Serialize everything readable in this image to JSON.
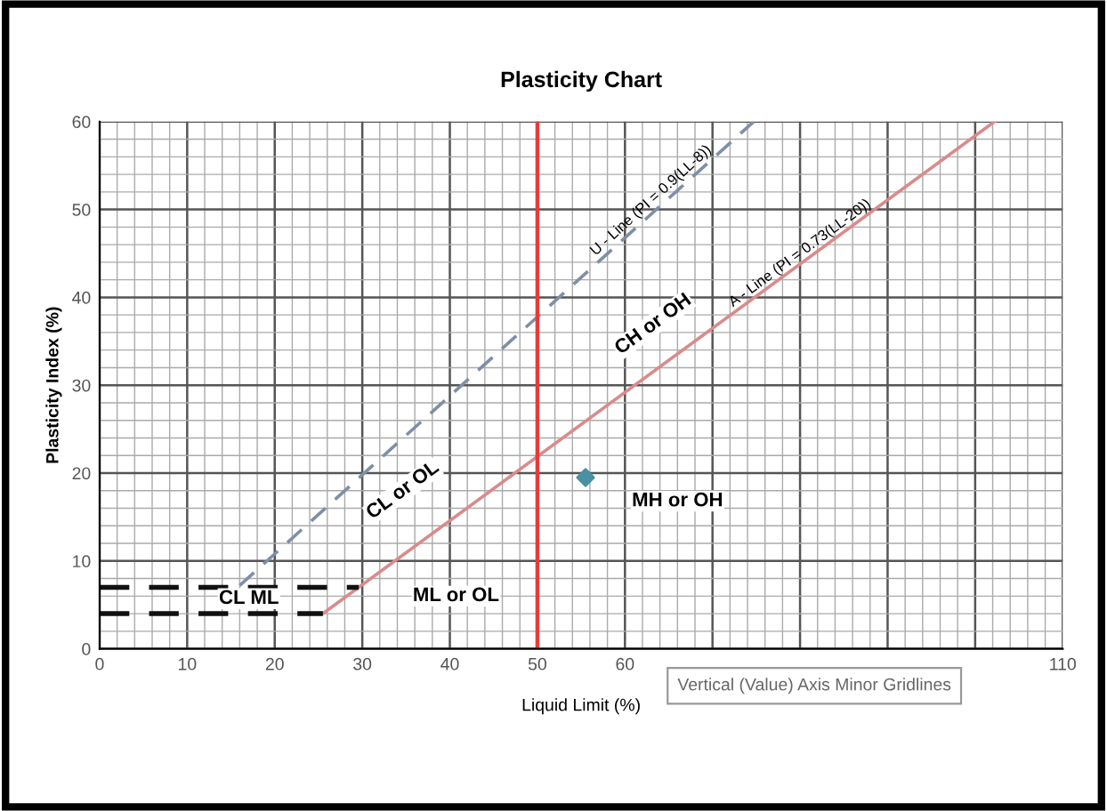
{
  "chart_data": {
    "type": "line",
    "title": "Plasticity Chart",
    "xlabel": "Liquid Limit (%)",
    "ylabel": "Plasticity Index (%)",
    "xlim": [
      0,
      110
    ],
    "ylim": [
      0,
      60
    ],
    "xticks": [
      0,
      10,
      20,
      30,
      40,
      50,
      60,
      {
        "value": 70,
        "label": null
      },
      {
        "value": 80,
        "label": null
      },
      {
        "value": 90,
        "label": null
      },
      {
        "value": 100,
        "label": null
      },
      110
    ],
    "yticks": [
      0,
      10,
      20,
      30,
      40,
      50,
      60
    ],
    "grid": true,
    "series": [
      {
        "x": [
          25.5,
          102.2
        ],
        "values": [
          4,
          60
        ],
        "color": "#d98b8b",
        "line_style": "solid"
      },
      {
        "x": [
          16,
          74.7
        ],
        "values": [
          7.2,
          60
        ],
        "color": "#7f8fa6",
        "line_style": "dashed"
      },
      {
        "x": [
          0,
          25.5
        ],
        "values": [
          4,
          4
        ],
        "color": "#111111",
        "line_style": "dashed"
      },
      {
        "x": [
          0,
          29.6
        ],
        "values": [
          7,
          7
        ],
        "color": "#111111",
        "line_style": "dashed"
      },
      {
        "type": "scatter",
        "x": [
          55.5
        ],
        "values": [
          19.5
        ],
        "color": "#4a90a4",
        "marker": "diamond"
      }
    ],
    "ref_lines": [
      {
        "axis": "x",
        "value": 50,
        "color": "#e83a3a",
        "line_style": "solid"
      }
    ],
    "annotations": [
      "CL or OL",
      "CH or OH",
      "ML or OL",
      "MH or OH",
      "CL ML",
      {
        "text": "U - Line (PI = 0.9(LL-8))",
        "x": 63,
        "y": 51
      },
      {
        "text": "A - Line (PI = 0.73(LL-20))",
        "x": 80,
        "y": 45
      },
      "Vertical (Value) Axis Minor Gridlines"
    ]
  }
}
